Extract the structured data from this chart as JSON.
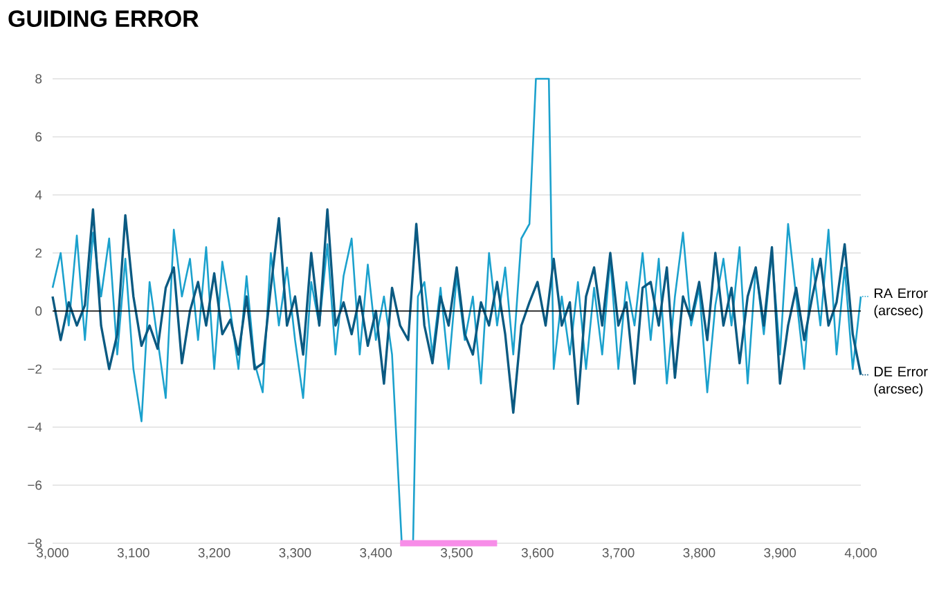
{
  "chart_data": {
    "type": "line",
    "title": "GUIDING ERROR",
    "xlim": [
      3000,
      4000
    ],
    "xticks": [
      {
        "value": 3000,
        "label": "3,000"
      },
      {
        "value": 3100,
        "label": "3,100"
      },
      {
        "value": 3200,
        "label": "3,200"
      },
      {
        "value": 3300,
        "label": "3,300"
      },
      {
        "value": 3400,
        "label": "3,400"
      },
      {
        "value": 3500,
        "label": "3,500"
      },
      {
        "value": 3600,
        "label": "3,600"
      },
      {
        "value": 3700,
        "label": "3,700"
      },
      {
        "value": 3800,
        "label": "3,800"
      },
      {
        "value": 3900,
        "label": "3,900"
      },
      {
        "value": 4000,
        "label": "4,000"
      }
    ],
    "ylim": [
      -8,
      8
    ],
    "yticks": [
      {
        "value": -8,
        "label": "−8"
      },
      {
        "value": -6,
        "label": "−6"
      },
      {
        "value": -4,
        "label": "−4"
      },
      {
        "value": -2,
        "label": "−2"
      },
      0,
      2,
      4,
      6,
      8
    ],
    "grid": "y",
    "legend": "right",
    "ref_lines": [
      {
        "axis": "y",
        "value": 0,
        "color": "#000000"
      }
    ],
    "series": [
      {
        "name": "RA Error (arcsec)",
        "color": "#1ba1cd",
        "x": [
          3000,
          3010,
          3020,
          3030,
          3040,
          3050,
          3060,
          3070,
          3080,
          3090,
          3100,
          3110,
          3120,
          3130,
          3140,
          3150,
          3160,
          3170,
          3180,
          3190,
          3200,
          3210,
          3220,
          3230,
          3240,
          3250,
          3260,
          3270,
          3280,
          3290,
          3300,
          3310,
          3320,
          3330,
          3340,
          3350,
          3360,
          3370,
          3380,
          3390,
          3400,
          3410,
          3420,
          3432,
          3446,
          3452,
          3460,
          3470,
          3480,
          3490,
          3500,
          3510,
          3520,
          3530,
          3540,
          3550,
          3560,
          3570,
          3580,
          3590,
          3598,
          3614,
          3620,
          3630,
          3640,
          3650,
          3660,
          3670,
          3680,
          3690,
          3700,
          3710,
          3720,
          3730,
          3740,
          3750,
          3760,
          3770,
          3780,
          3790,
          3800,
          3810,
          3820,
          3830,
          3840,
          3850,
          3860,
          3870,
          3880,
          3890,
          3900,
          3910,
          3920,
          3930,
          3940,
          3950,
          3960,
          3970,
          3980,
          3990,
          4000
        ],
        "values": [
          0.8,
          2.0,
          -0.5,
          2.6,
          -1.0,
          2.7,
          0.5,
          2.5,
          -1.5,
          1.8,
          -2.0,
          -3.8,
          1.0,
          -1.0,
          -3.0,
          2.8,
          0.5,
          1.8,
          -1.0,
          2.2,
          -2.0,
          1.7,
          0.0,
          -2.0,
          1.2,
          -1.8,
          -2.8,
          2.0,
          -0.5,
          1.5,
          -1.0,
          -3.0,
          1.0,
          -0.5,
          2.3,
          -1.5,
          1.2,
          2.5,
          -1.5,
          1.6,
          -1.0,
          0.5,
          -1.5,
          -8,
          -8,
          0.5,
          1.0,
          -1.5,
          0.8,
          -2.0,
          1.2,
          -1.0,
          0.5,
          -2.5,
          2.0,
          -0.5,
          1.5,
          -1.5,
          2.5,
          3.0,
          8,
          8,
          -2.0,
          0.5,
          -1.5,
          1.0,
          -2.0,
          0.8,
          -1.5,
          1.8,
          -2.0,
          1.0,
          -0.5,
          2.0,
          -1.0,
          1.8,
          -2.5,
          0.5,
          2.7,
          -0.5,
          0.8,
          -2.8,
          0.2,
          1.8,
          -0.5,
          2.2,
          -2.5,
          1.5,
          -0.8,
          2.0,
          -1.5,
          3.0,
          0.5,
          -2.0,
          1.8,
          -0.5,
          2.8,
          -1.5,
          1.5,
          -2.0,
          0.5
        ]
      },
      {
        "name": "DE Error (arcsec)",
        "color": "#0b5a82",
        "x": [
          3000,
          3010,
          3020,
          3030,
          3040,
          3050,
          3060,
          3070,
          3080,
          3090,
          3100,
          3110,
          3120,
          3130,
          3140,
          3150,
          3160,
          3170,
          3180,
          3190,
          3200,
          3210,
          3220,
          3230,
          3240,
          3250,
          3260,
          3270,
          3280,
          3290,
          3300,
          3310,
          3320,
          3330,
          3340,
          3350,
          3360,
          3370,
          3380,
          3390,
          3400,
          3410,
          3420,
          3430,
          3440,
          3450,
          3460,
          3470,
          3480,
          3490,
          3500,
          3510,
          3520,
          3530,
          3540,
          3550,
          3560,
          3570,
          3580,
          3590,
          3600,
          3610,
          3620,
          3630,
          3640,
          3650,
          3660,
          3670,
          3680,
          3690,
          3700,
          3710,
          3720,
          3730,
          3740,
          3750,
          3760,
          3770,
          3780,
          3790,
          3800,
          3810,
          3820,
          3830,
          3840,
          3850,
          3860,
          3870,
          3880,
          3890,
          3900,
          3910,
          3920,
          3930,
          3940,
          3950,
          3960,
          3970,
          3980,
          3990,
          4000
        ],
        "values": [
          0.5,
          -1.0,
          0.3,
          -0.5,
          0.2,
          3.5,
          -0.5,
          -2.0,
          -0.8,
          3.3,
          0.5,
          -1.2,
          -0.5,
          -1.3,
          0.8,
          1.5,
          -1.8,
          0.0,
          1.0,
          -0.5,
          1.3,
          -0.8,
          -0.3,
          -1.5,
          0.5,
          -2.0,
          -1.8,
          0.8,
          3.2,
          -0.5,
          0.5,
          -1.5,
          2.0,
          -0.5,
          3.5,
          -0.5,
          0.3,
          -0.8,
          0.5,
          -1.2,
          0.0,
          -2.5,
          0.8,
          -0.5,
          -1.0,
          3.0,
          -0.5,
          -1.8,
          0.5,
          -0.5,
          1.5,
          -0.8,
          -1.5,
          0.3,
          -0.5,
          1.0,
          -0.8,
          -3.5,
          -0.5,
          0.3,
          1.0,
          -0.5,
          1.8,
          -0.5,
          0.3,
          -3.2,
          0.5,
          1.5,
          -0.5,
          2.0,
          -0.5,
          0.3,
          -2.5,
          0.8,
          1.0,
          -0.5,
          1.5,
          -2.3,
          0.5,
          -0.3,
          1.0,
          -1.0,
          2.0,
          -0.5,
          0.8,
          -1.8,
          0.5,
          1.5,
          -0.5,
          2.2,
          -2.5,
          -0.5,
          0.8,
          -1.0,
          0.5,
          1.8,
          -0.5,
          0.3,
          2.3,
          -0.8,
          -2.2
        ]
      },
      {
        "color": "#f78de8",
        "x": [
          3430,
          3550
        ],
        "values": [
          -8,
          -8
        ]
      }
    ]
  }
}
